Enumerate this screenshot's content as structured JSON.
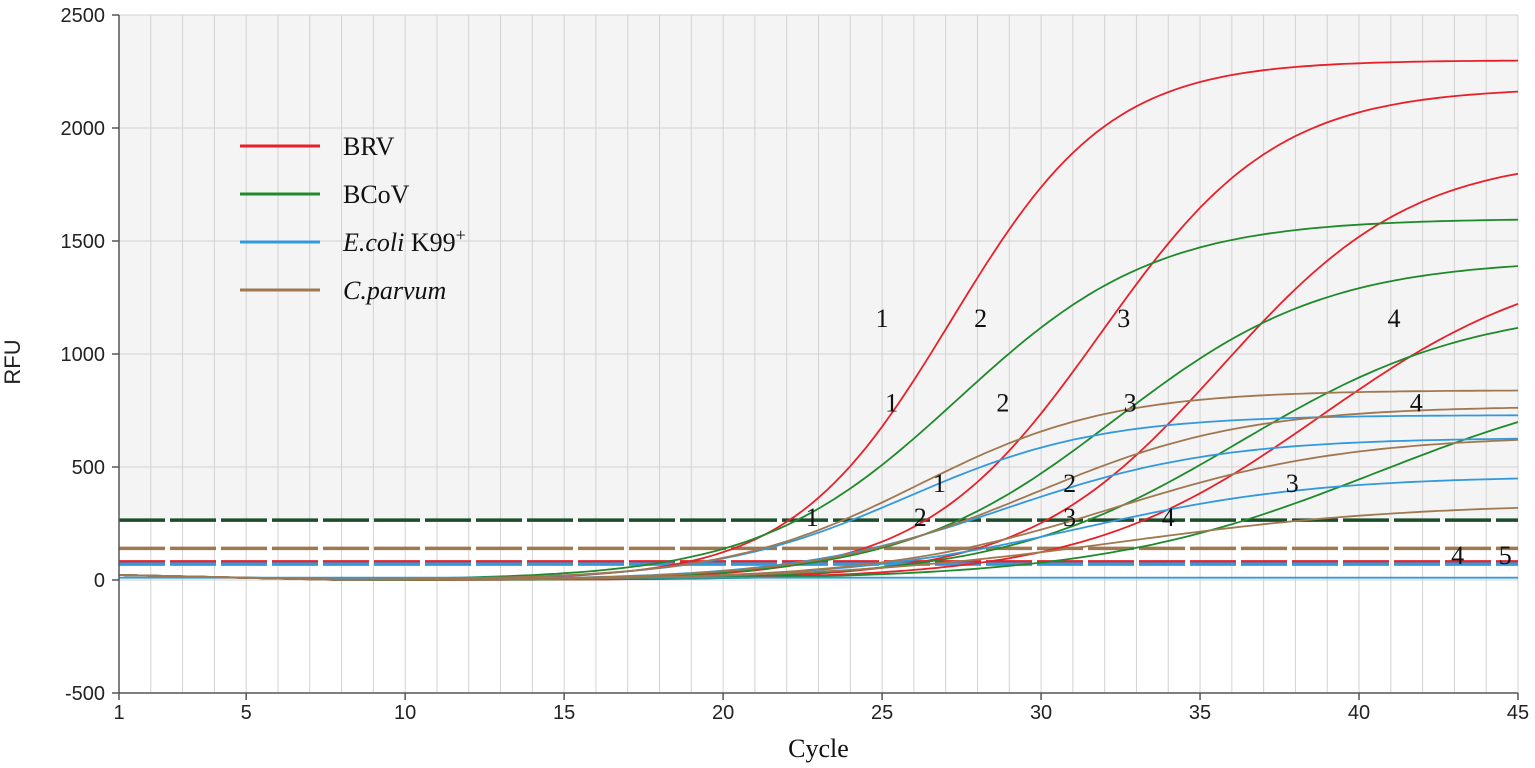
{
  "chart_data": {
    "type": "line",
    "title": "",
    "xlabel": "Cycle",
    "ylabel": "RFU",
    "xlim": [
      1,
      45
    ],
    "ylim": [
      -500,
      2500
    ],
    "grid": true,
    "legend_position": "top-left",
    "x_ticks": [
      {
        "value": 1,
        "label": "1"
      },
      {
        "value": 5,
        "label": "5"
      },
      {
        "value": 10,
        "label": "10"
      },
      {
        "value": 15,
        "label": "15"
      },
      {
        "value": 20,
        "label": "20"
      },
      {
        "value": 25,
        "label": "25"
      },
      {
        "value": 30,
        "label": "30"
      },
      {
        "value": 35,
        "label": "35"
      },
      {
        "value": 40,
        "label": "40"
      },
      {
        "value": 45,
        "label": "45"
      }
    ],
    "y_ticks": [
      {
        "value": -500,
        "label": "-500"
      },
      {
        "value": 0,
        "label": "0"
      },
      {
        "value": 500,
        "label": "500"
      },
      {
        "value": 1000,
        "label": "1000"
      },
      {
        "value": 1500,
        "label": "1500"
      },
      {
        "value": 2000,
        "label": "2000"
      },
      {
        "value": 2500,
        "label": "2500"
      }
    ],
    "legend": [
      {
        "name": "BRV",
        "color": "#e8202a"
      },
      {
        "name": "BCoV",
        "color": "#1f8a2c"
      },
      {
        "name": "E.coli K99+",
        "name_italic": "E.coli",
        "name_rest": " K99",
        "name_sup": "+",
        "color": "#3399dd"
      },
      {
        "name": "C.parvum",
        "color": "#a07850",
        "italic": true
      }
    ],
    "thresholds": [
      {
        "target": "BCoV",
        "value": 265,
        "color": "#1e4d2b"
      },
      {
        "target": "C.parvum",
        "value": 140,
        "color": "#a07850"
      },
      {
        "target": "BRV",
        "value": 80,
        "color": "#e8202a"
      },
      {
        "target": "E.coli K99+",
        "value": 70,
        "color": "#3399dd"
      }
    ],
    "series": [
      {
        "group": "BRV",
        "dilution": "1",
        "color": "#e8202a",
        "ct": 21.3,
        "min": 0,
        "max": 2300,
        "slope": 0.4
      },
      {
        "group": "BRV",
        "dilution": "2",
        "color": "#e8202a",
        "ct": 25.5,
        "min": 0,
        "max": 2180,
        "slope": 0.36
      },
      {
        "group": "BRV",
        "dilution": "3",
        "color": "#e8202a",
        "ct": 29.2,
        "min": 0,
        "max": 1880,
        "slope": 0.33
      },
      {
        "group": "BRV",
        "dilution": "4",
        "color": "#e8202a",
        "ct": 32.0,
        "min": 0,
        "max": 1450,
        "slope": 0.27
      },
      {
        "group": "BCoV",
        "dilution": "1",
        "color": "#1f8a2c",
        "ct": 21.3,
        "min": 0,
        "max": 1600,
        "slope": 0.32
      },
      {
        "group": "BCoV",
        "dilution": "2",
        "color": "#1f8a2c",
        "ct": 26.3,
        "min": 0,
        "max": 1420,
        "slope": 0.3
      },
      {
        "group": "BCoV",
        "dilution": "3",
        "color": "#1f8a2c",
        "ct": 30.2,
        "min": 0,
        "max": 1220,
        "slope": 0.27
      },
      {
        "group": "BCoV",
        "dilution": "4",
        "color": "#1f8a2c",
        "ct": 34.8,
        "min": 0,
        "max": 950,
        "slope": 0.23
      },
      {
        "group": "E.coli K99+",
        "dilution": "1",
        "color": "#3399dd",
        "ct": 22.8,
        "min": 0,
        "max": 730,
        "slope": 0.33
      },
      {
        "group": "E.coli K99+",
        "dilution": "2",
        "color": "#3399dd",
        "ct": 26.3,
        "min": 0,
        "max": 630,
        "slope": 0.3
      },
      {
        "group": "E.coli K99+",
        "dilution": "3",
        "color": "#3399dd",
        "ct": 30.3,
        "min": 0,
        "max": 460,
        "slope": 0.27
      },
      {
        "group": "E.coli K99+",
        "dilution": "4",
        "color": "#3399dd",
        "ct": 45,
        "min": 10,
        "max": 10,
        "slope": 0.1,
        "flat": true
      },
      {
        "group": "C.parvum",
        "dilution": "1",
        "color": "#a07850",
        "ct": 22.6,
        "min": 0,
        "max": 840,
        "slope": 0.33
      },
      {
        "group": "C.parvum",
        "dilution": "2",
        "color": "#a07850",
        "ct": 26.3,
        "min": 0,
        "max": 770,
        "slope": 0.3
      },
      {
        "group": "C.parvum",
        "dilution": "3",
        "color": "#a07850",
        "ct": 29.4,
        "min": 0,
        "max": 640,
        "slope": 0.27
      },
      {
        "group": "C.parvum",
        "dilution": "4",
        "color": "#a07850",
        "ct": 34.2,
        "min": 0,
        "max": 340,
        "slope": 0.22
      }
    ],
    "annotations": [
      {
        "text": "1",
        "x": 25.0,
        "y": 1120
      },
      {
        "text": "2",
        "x": 28.1,
        "y": 1120
      },
      {
        "text": "3",
        "x": 32.6,
        "y": 1120
      },
      {
        "text": "4",
        "x": 41.1,
        "y": 1120
      },
      {
        "text": "1",
        "x": 25.3,
        "y": 745
      },
      {
        "text": "2",
        "x": 28.8,
        "y": 745
      },
      {
        "text": "3",
        "x": 32.8,
        "y": 745
      },
      {
        "text": "4",
        "x": 41.8,
        "y": 745
      },
      {
        "text": "1",
        "x": 26.8,
        "y": 390
      },
      {
        "text": "2",
        "x": 30.9,
        "y": 390
      },
      {
        "text": "3",
        "x": 37.9,
        "y": 390
      },
      {
        "text": "1",
        "x": 22.8,
        "y": 240
      },
      {
        "text": "2",
        "x": 26.2,
        "y": 240
      },
      {
        "text": "3",
        "x": 30.9,
        "y": 240
      },
      {
        "text": "4",
        "x": 34.0,
        "y": 240
      },
      {
        "text": "4",
        "x": 43.1,
        "y": 70
      },
      {
        "text": "5",
        "x": 44.6,
        "y": 70
      }
    ]
  }
}
